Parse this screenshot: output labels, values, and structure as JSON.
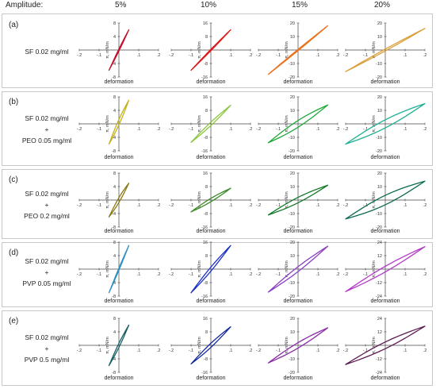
{
  "header": {
    "amplitude_label": "Amplitude:",
    "amplitudes": [
      "5%",
      "10%",
      "15%",
      "20%"
    ]
  },
  "axis_labels": {
    "x": "deformation",
    "y": "π, mN/m"
  },
  "rows": [
    {
      "letter": "(a)",
      "label_lines": [
        "SF 0.02 mg/ml"
      ]
    },
    {
      "letter": "(b)",
      "label_lines": [
        "SF 0.02 mg/ml",
        "+",
        "PEO 0.05 mg/ml"
      ]
    },
    {
      "letter": "(c)",
      "label_lines": [
        "SF 0.02 mg/ml",
        "+",
        "PEO 0.2 mg/ml"
      ]
    },
    {
      "letter": "(d)",
      "label_lines": [
        "SF 0.02 mg/ml",
        "+",
        "PVP 0.05 mg/ml"
      ]
    },
    {
      "letter": "(e)",
      "label_lines": [
        "SF 0.02 mg/ml",
        "+",
        "PVP 0.5 mg/ml"
      ]
    }
  ],
  "chart_data": {
    "type": "line",
    "title": "",
    "xlabel": "deformation",
    "ylabel": "π, mN/m",
    "xlim": [
      -0.2,
      0.2
    ],
    "xticks": [
      -0.2,
      -0.1,
      0.1,
      0.2
    ],
    "panels": [
      {
        "row": "a",
        "amplitude": "5%",
        "color": "#c0122e",
        "ylim": [
          -8,
          8
        ],
        "yticks": [
          -8,
          -4,
          4,
          8
        ],
        "x_range": [
          -0.05,
          0.05
        ],
        "y_range": [
          -6,
          6
        ],
        "loop_width": 0.3
      },
      {
        "row": "a",
        "amplitude": "10%",
        "color": "#dd1a1a",
        "ylim": [
          -16,
          16
        ],
        "yticks": [
          -16,
          -8,
          8,
          16
        ],
        "x_range": [
          -0.1,
          0.1
        ],
        "y_range": [
          -12,
          12
        ],
        "loop_width": 0.4
      },
      {
        "row": "a",
        "amplitude": "15%",
        "color": "#e87420",
        "ylim": [
          -20,
          20
        ],
        "yticks": [
          -20,
          -10,
          10,
          20
        ],
        "x_range": [
          -0.15,
          0.15
        ],
        "y_range": [
          -18,
          18
        ],
        "loop_width": 0.5
      },
      {
        "row": "a",
        "amplitude": "20%",
        "color": "#d9a03a",
        "ylim": [
          -20,
          20
        ],
        "yticks": [
          -20,
          -10,
          10,
          20
        ],
        "x_range": [
          -0.2,
          0.2
        ],
        "y_range": [
          -16,
          16
        ],
        "loop_width": 0.7
      },
      {
        "row": "b",
        "amplitude": "5%",
        "color": "#c3b11b",
        "ylim": [
          -8,
          8
        ],
        "yticks": [
          -8,
          -4,
          4,
          8
        ],
        "x_range": [
          -0.05,
          0.05
        ],
        "y_range": [
          -6,
          7
        ],
        "loop_width": 0.8
      },
      {
        "row": "b",
        "amplitude": "10%",
        "color": "#8dc63f",
        "ylim": [
          -16,
          16
        ],
        "yticks": [
          -16,
          -8,
          8,
          16
        ],
        "x_range": [
          -0.1,
          0.1
        ],
        "y_range": [
          -11,
          11
        ],
        "loop_width": 1.0
      },
      {
        "row": "b",
        "amplitude": "15%",
        "color": "#21a83b",
        "ylim": [
          -20,
          20
        ],
        "yticks": [
          -20,
          -10,
          10,
          20
        ],
        "x_range": [
          -0.15,
          0.15
        ],
        "y_range": [
          -14,
          14
        ],
        "loop_width": 2.5
      },
      {
        "row": "b",
        "amplitude": "20%",
        "color": "#1fb092",
        "ylim": [
          -20,
          20
        ],
        "yticks": [
          -20,
          -10,
          10,
          20
        ],
        "x_range": [
          -0.2,
          0.2
        ],
        "y_range": [
          -15,
          15
        ],
        "loop_width": 3.0
      },
      {
        "row": "c",
        "amplitude": "5%",
        "color": "#8a7a14",
        "ylim": [
          -8,
          8
        ],
        "yticks": [
          -8,
          -4,
          4,
          8
        ],
        "x_range": [
          -0.05,
          0.05
        ],
        "y_range": [
          -5,
          5
        ],
        "loop_width": 0.7
      },
      {
        "row": "c",
        "amplitude": "10%",
        "color": "#3f8a2a",
        "ylim": [
          -16,
          16
        ],
        "yticks": [
          -16,
          -8,
          8,
          16
        ],
        "x_range": [
          -0.1,
          0.1
        ],
        "y_range": [
          -7,
          7
        ],
        "loop_width": 1.0
      },
      {
        "row": "c",
        "amplitude": "15%",
        "color": "#137a2a",
        "ylim": [
          -20,
          20
        ],
        "yticks": [
          -20,
          -10,
          10,
          20
        ],
        "x_range": [
          -0.15,
          0.15
        ],
        "y_range": [
          -11,
          11
        ],
        "loop_width": 2.0
      },
      {
        "row": "c",
        "amplitude": "20%",
        "color": "#0d6a52",
        "ylim": [
          -20,
          20
        ],
        "yticks": [
          -20,
          -10,
          10,
          20
        ],
        "x_range": [
          -0.2,
          0.2
        ],
        "y_range": [
          -14,
          14
        ],
        "loop_width": 3.5
      },
      {
        "row": "d",
        "amplitude": "5%",
        "color": "#2d8fc0",
        "ylim": [
          -8,
          8
        ],
        "yticks": [
          -8,
          -4,
          4,
          8
        ],
        "x_range": [
          -0.05,
          0.05
        ],
        "y_range": [
          -7,
          7
        ],
        "loop_width": 0.3
      },
      {
        "row": "d",
        "amplitude": "10%",
        "color": "#1b2fc7",
        "ylim": [
          -16,
          16
        ],
        "yticks": [
          -16,
          -8,
          8,
          16
        ],
        "x_range": [
          -0.1,
          0.1
        ],
        "y_range": [
          -14,
          14
        ],
        "loop_width": 1.2
      },
      {
        "row": "d",
        "amplitude": "15%",
        "color": "#8a3fc2",
        "ylim": [
          -20,
          20
        ],
        "yticks": [
          -20,
          -10,
          10,
          20
        ],
        "x_range": [
          -0.15,
          0.15
        ],
        "y_range": [
          -17,
          17
        ],
        "loop_width": 1.8
      },
      {
        "row": "d",
        "amplitude": "20%",
        "color": "#b23ac9",
        "ylim": [
          -24,
          24
        ],
        "yticks": [
          -24,
          -12,
          12,
          24
        ],
        "x_range": [
          -0.2,
          0.2
        ],
        "y_range": [
          -20,
          20
        ],
        "loop_width": 2.5
      },
      {
        "row": "e",
        "amplitude": "5%",
        "color": "#1a5f66",
        "ylim": [
          -8,
          8
        ],
        "yticks": [
          -8,
          -4,
          4,
          8
        ],
        "x_range": [
          -0.05,
          0.05
        ],
        "y_range": [
          -6,
          6
        ],
        "loop_width": 0.6
      },
      {
        "row": "e",
        "amplitude": "10%",
        "color": "#162a9e",
        "ylim": [
          -16,
          16
        ],
        "yticks": [
          -16,
          -8,
          8,
          16
        ],
        "x_range": [
          -0.1,
          0.1
        ],
        "y_range": [
          -11,
          11
        ],
        "loop_width": 1.2
      },
      {
        "row": "e",
        "amplitude": "15%",
        "color": "#8a2aa8",
        "ylim": [
          -20,
          20
        ],
        "yticks": [
          -20,
          -10,
          10,
          20
        ],
        "x_range": [
          -0.15,
          0.15
        ],
        "y_range": [
          -13,
          13
        ],
        "loop_width": 2.0
      },
      {
        "row": "e",
        "amplitude": "20%",
        "color": "#5a1a4f",
        "ylim": [
          -24,
          24
        ],
        "yticks": [
          -24,
          -12,
          12,
          24
        ],
        "x_range": [
          -0.2,
          0.2
        ],
        "y_range": [
          -17,
          17
        ],
        "loop_width": 3.0
      }
    ]
  }
}
